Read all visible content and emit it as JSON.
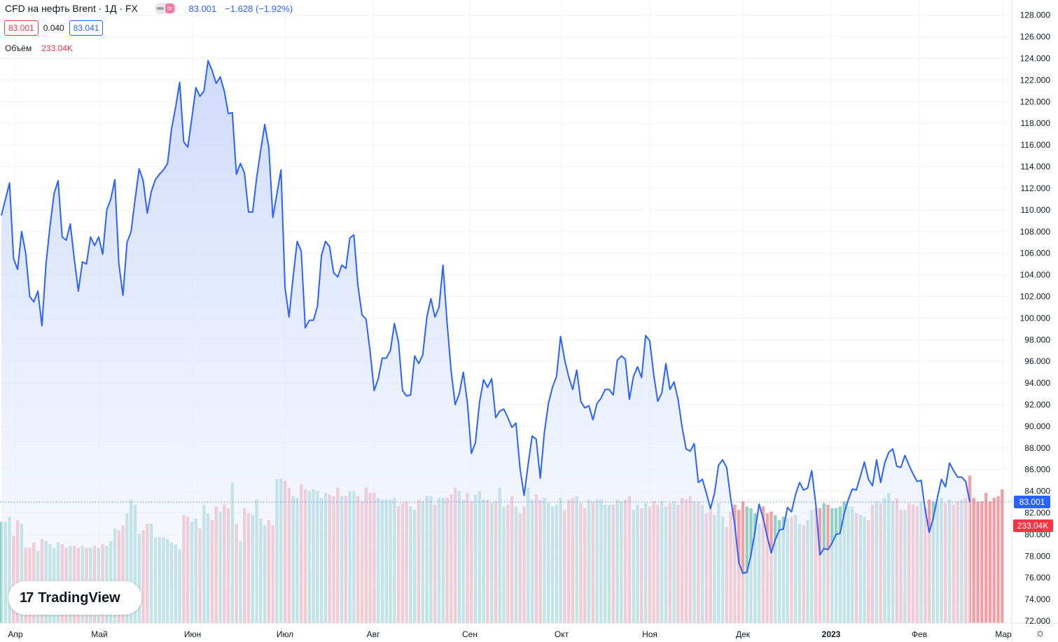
{
  "legend": {
    "title": "CFD на нефть Brent · 1Д · FX",
    "last": "83.001",
    "change": "−1.628 (−1.92%)"
  },
  "quote": {
    "bid": "83.001",
    "spread": "0.040",
    "ask": "83.041"
  },
  "volume": {
    "label": "Объём",
    "value": "233.04K"
  },
  "logo": {
    "text": "TradingView"
  },
  "icons": {
    "logo_mark": "tradingview-mark-icon",
    "settings": "settings-gear-icon",
    "toggle": "indicator-toggle-icon"
  },
  "chart_data": {
    "type": "area",
    "x_tick_labels": [
      "Апр",
      "Май",
      "Июн",
      "Июл",
      "Авг",
      "Сен",
      "Окт",
      "Ноя",
      "Дек",
      "2023",
      "Фев",
      "Мар"
    ],
    "y_tick_labels": [
      "72.000",
      "74.000",
      "76.000",
      "78.000",
      "80.000",
      "82.000",
      "84.000",
      "86.000",
      "88.000",
      "90.000",
      "92.000",
      "94.000",
      "96.000",
      "98.000",
      "100.000",
      "102.000",
      "104.000",
      "106.000",
      "108.000",
      "110.000",
      "112.000",
      "114.000",
      "116.000",
      "118.000",
      "120.000",
      "122.000",
      "124.000",
      "126.000",
      "128.000"
    ],
    "ylim": [
      72,
      128.5
    ],
    "last_price": 83.001,
    "last_price_label": "83.001",
    "last_volume_label": "233.04K",
    "colors": {
      "line": "#2962ff",
      "area_top": "#c6d4fb",
      "area_bottom": "#f3f6ff",
      "vol_up": "#8fd1c8",
      "vol_down": "#f2a0a6",
      "grid": "#f0f3fa",
      "price_label": "#2962ff",
      "vol_label": "#f23645"
    },
    "grid": true,
    "price": [
      109.5,
      111,
      112.5,
      105.5,
      104.5,
      108,
      106,
      102,
      101.5,
      102.5,
      99.3,
      105,
      108.5,
      111.5,
      112.7,
      107.5,
      107.2,
      108.7,
      105.4,
      102.5,
      105.2,
      105,
      107.5,
      106.7,
      107.5,
      105.9,
      110,
      111,
      112.8,
      105,
      102.1,
      107,
      108,
      111,
      113.8,
      112.7,
      109.7,
      111.7,
      112.8,
      113.3,
      113.7,
      114.3,
      117.5,
      119.5,
      121.8,
      116.3,
      115.8,
      118.5,
      121.3,
      120.5,
      121,
      123.8,
      122.9,
      121.7,
      122.3,
      121,
      118.9,
      119,
      113.3,
      114.3,
      113.4,
      109.8,
      109.8,
      113,
      115.5,
      117.9,
      115.8,
      109.3,
      111.5,
      113.7,
      102.8,
      100.1,
      103.8,
      107.1,
      106.2,
      99.1,
      99.8,
      99.8,
      101.1,
      105.8,
      107.1,
      106.6,
      104.2,
      103.8,
      104.9,
      104.6,
      107.4,
      107.7,
      103,
      100.3,
      99.9,
      96.9,
      93.3,
      94.4,
      96.3,
      96.3,
      97,
      99.5,
      97.8,
      93.3,
      92.8,
      92.9,
      96.5,
      95.8,
      96.6,
      100.1,
      101.8,
      100.1,
      101,
      104.9,
      99.6,
      95.1,
      92,
      93,
      95,
      92.2,
      87.5,
      88.5,
      92.2,
      94.3,
      93.6,
      94.4,
      90.8,
      91.4,
      91.6,
      90.8,
      89.9,
      90.3,
      86.1,
      83.6,
      86.5,
      89.1,
      88.8,
      85.2,
      89.4,
      92.1,
      93.6,
      94.6,
      98.3,
      96.2,
      94.6,
      93.4,
      95.2,
      92.3,
      91.7,
      91.9,
      90.6,
      92.1,
      92.6,
      93.4,
      93.4,
      92.9,
      96.1,
      96.5,
      96.2,
      92.5,
      94.6,
      95.5,
      94.5,
      98.4,
      97.9,
      94.8,
      92.3,
      93.1,
      95.8,
      93.4,
      94.1,
      92.5,
      89.9,
      87.9,
      87.7,
      88.4,
      84.8,
      85.1,
      83.8,
      82.4,
      83.8,
      86.4,
      86.9,
      86.2,
      83.3,
      80.9,
      77.4,
      76.4,
      76.5,
      78.1,
      80.3,
      82.8,
      81.5,
      79.8,
      78.3,
      79.5,
      80.4,
      80.5,
      82.5,
      82.1,
      83.7,
      84.8,
      84.1,
      84.3,
      85.9,
      82.8,
      78.1,
      78.7,
      78.6,
      79.2,
      80,
      80.1,
      81.9,
      83.2,
      84.2,
      84.1,
      85.4,
      86.7,
      85.1,
      84.5,
      86.9,
      84.8,
      86.6,
      87.6,
      87.9,
      86.3,
      86.2,
      87.3,
      86.4,
      85.6,
      84.9,
      85,
      82.3,
      80.2,
      81.5,
      83.4,
      85.1,
      84.4,
      86.6,
      85.9,
      85.3,
      85.3,
      84.9,
      83
    ],
    "volume": [
      59,
      59,
      62,
      51,
      60,
      58,
      44,
      44,
      47,
      42,
      49,
      48,
      46,
      44,
      47,
      46,
      44,
      45,
      45,
      44,
      45,
      44,
      44,
      45,
      44,
      46,
      45,
      48,
      55,
      54,
      57,
      64,
      72,
      69,
      52,
      54,
      58,
      58,
      50,
      50,
      50,
      49,
      47,
      46,
      43,
      63,
      62,
      59,
      61,
      55,
      69,
      64,
      60,
      68,
      65,
      69,
      67,
      82,
      58,
      48,
      67,
      64,
      63,
      72,
      61,
      57,
      60,
      57,
      84,
      84,
      83,
      79,
      74,
      73,
      81,
      78,
      77,
      78,
      77,
      73,
      76,
      75,
      74,
      79,
      74,
      74,
      77,
      77,
      74,
      71,
      79,
      76,
      76,
      73,
      72,
      72,
      72,
      73,
      68,
      70,
      71,
      68,
      66,
      72,
      71,
      74,
      74,
      69,
      73,
      73,
      73,
      75,
      79,
      77,
      72,
      76,
      71,
      75,
      77,
      72,
      72,
      70,
      71,
      79,
      68,
      69,
      74,
      68,
      64,
      68,
      79,
      72,
      75,
      72,
      73,
      70,
      68,
      69,
      73,
      66,
      72,
      73,
      74,
      70,
      67,
      72,
      71,
      72,
      72,
      69,
      69,
      69,
      72,
      71,
      72,
      74,
      66,
      69,
      67,
      70,
      68,
      71,
      69,
      71,
      68,
      70,
      71,
      69,
      73,
      72,
      74,
      71,
      71,
      69,
      64,
      68,
      63,
      70,
      62,
      56,
      65,
      69,
      66,
      71,
      68,
      67,
      64,
      58,
      68,
      64,
      65,
      63,
      60,
      62,
      61,
      62,
      63,
      58,
      57,
      60,
      66,
      67,
      67,
      70,
      69,
      67,
      67,
      68,
      71,
      68,
      68,
      64,
      63,
      62,
      60,
      69,
      71,
      70,
      73,
      76,
      71,
      73,
      66,
      66,
      70,
      69,
      68,
      71,
      67,
      72,
      71,
      70,
      73,
      70,
      72,
      69,
      71,
      72,
      73,
      86,
      73,
      71,
      71,
      76,
      71,
      73,
      74,
      78
    ]
  }
}
